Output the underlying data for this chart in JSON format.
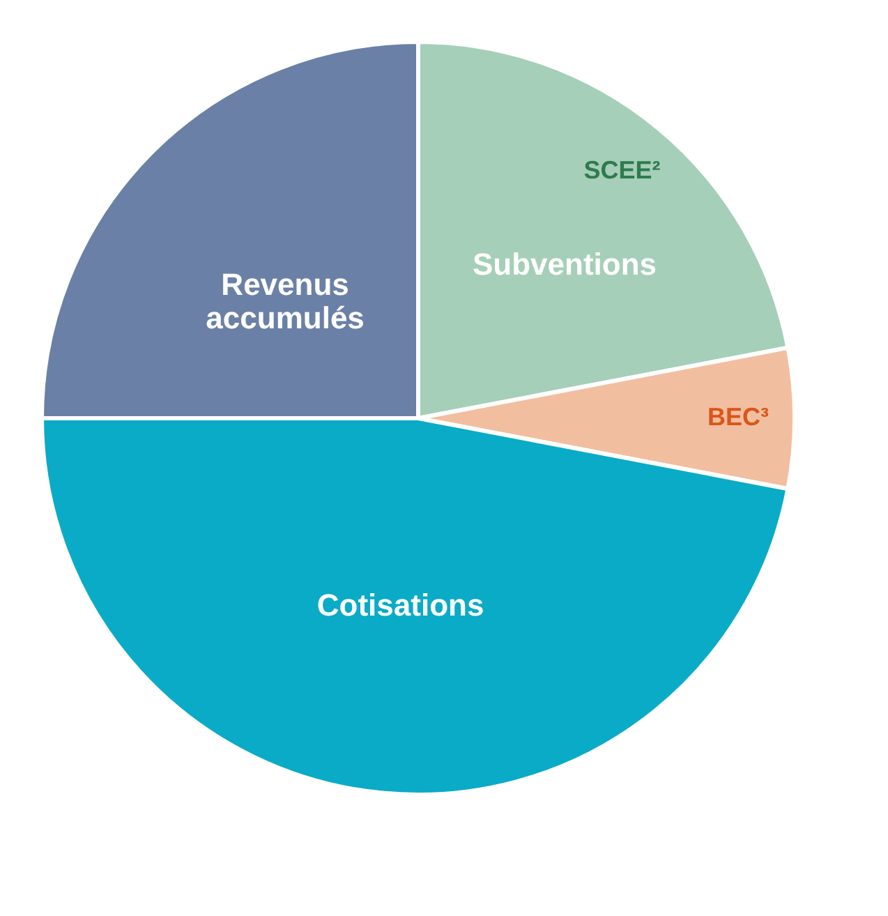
{
  "chart_data": {
    "type": "pie",
    "categories": [
      "SCEE²",
      "BEC³",
      "Cotisations",
      "Revenus accumulés"
    ],
    "values": [
      22,
      6,
      47,
      25
    ],
    "colors": [
      "#a5cfb8",
      "#f2bea0",
      "#0aabc7",
      "#6a80a6"
    ],
    "annotations": [
      "Subventions"
    ],
    "legend": false
  }
}
